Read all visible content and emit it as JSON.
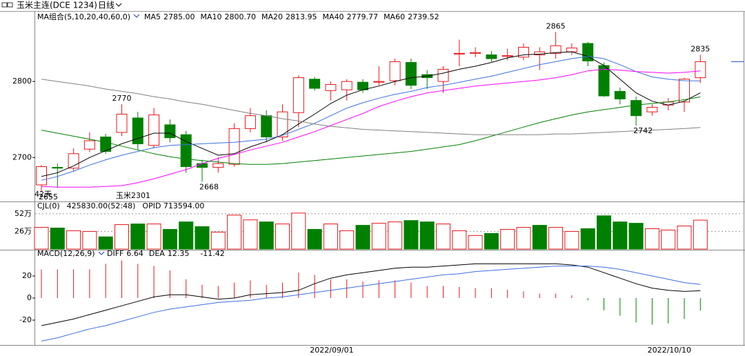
{
  "toolbar": {
    "title": "玉米主连(DCE 1234)",
    "period": "日线"
  },
  "chart_data": [
    {
      "type": "candlestick",
      "title": "MA组合(5,10,20,40,60,0)",
      "categories": [
        null,
        null,
        null,
        null,
        null,
        null,
        null,
        null,
        null,
        null,
        null,
        null,
        null,
        null,
        null,
        null,
        null,
        null,
        null,
        "2022/09/01",
        null,
        null,
        null,
        null,
        null,
        null,
        null,
        null,
        null,
        null,
        null,
        null,
        null,
        null,
        null,
        null,
        null,
        null,
        null,
        null,
        "2022/10/10",
        null
      ],
      "open": [
        2664,
        2687,
        2686,
        2711,
        2727,
        2733,
        2752,
        2716,
        2743,
        2730,
        2692,
        2687,
        2691,
        2738,
        2755,
        2727,
        2759,
        2803,
        2788,
        2789,
        2799,
        2799,
        2801,
        2825,
        2809,
        2800,
        2836,
        2837,
        2835,
        2833,
        2832,
        2835,
        2837,
        2839,
        2850,
        2821,
        2787,
        2775,
        2760,
        2769,
        2773,
        2805
      ],
      "high": [
        2690,
        2692,
        2712,
        2733,
        2731,
        2770,
        2760,
        2765,
        2750,
        2735,
        2697,
        2700,
        2745,
        2765,
        2762,
        2770,
        2808,
        2806,
        2800,
        2803,
        2803,
        2820,
        2830,
        2830,
        2815,
        2820,
        2855,
        2845,
        2840,
        2843,
        2850,
        2845,
        2865,
        2850,
        2852,
        2825,
        2792,
        2780,
        2770,
        2778,
        2805,
        2835
      ],
      "low": [
        2655,
        2660,
        2682,
        2707,
        2705,
        2728,
        2710,
        2712,
        2720,
        2680,
        2668,
        2680,
        2688,
        2733,
        2720,
        2722,
        2740,
        2788,
        2775,
        2775,
        2785,
        2795,
        2795,
        2790,
        2790,
        2785,
        2820,
        2832,
        2826,
        2828,
        2828,
        2815,
        2830,
        2835,
        2820,
        2780,
        2770,
        2742,
        2755,
        2762,
        2760,
        2798
      ],
      "close": [
        2688,
        2686,
        2705,
        2722,
        2708,
        2757,
        2718,
        2756,
        2726,
        2688,
        2687,
        2692,
        2738,
        2755,
        2727,
        2760,
        2805,
        2791,
        2796,
        2800,
        2789,
        2800,
        2826,
        2795,
        2805,
        2816,
        2837,
        2838,
        2830,
        2834,
        2845,
        2839,
        2847,
        2844,
        2827,
        2781,
        2777,
        2755,
        2766,
        2773,
        2803,
        2826
      ],
      "up_color": "#e8161c",
      "down_color": "#008000",
      "ylim": [
        2644,
        2889
      ],
      "yticks": [
        2700,
        2800
      ],
      "marked_highs": [
        5,
        32,
        41
      ],
      "marked_lows": [
        0,
        10,
        37
      ],
      "span_label": "42天",
      "contract_label": "玉米2301",
      "series": [
        {
          "name": "MA5",
          "color": "#000000",
          "legend_value": "2785.00",
          "values": [
            2675,
            2680,
            2689,
            2700,
            2709,
            2718,
            2725,
            2732,
            2732,
            2721,
            2712,
            2703,
            2705,
            2714,
            2721,
            2730,
            2744,
            2757,
            2771,
            2782,
            2789,
            2794,
            2800,
            2805,
            2807,
            2811,
            2816,
            2820,
            2825,
            2831,
            2835,
            2836,
            2838,
            2839,
            2833,
            2821,
            2803,
            2785,
            2774,
            2769,
            2774,
            2785
          ]
        },
        {
          "name": "MA10",
          "color": "#3b6fe0",
          "legend_value": "2800.70",
          "values": [
            2670,
            2675,
            2682,
            2690,
            2697,
            2703,
            2708,
            2713,
            2716,
            2717,
            2718,
            2719,
            2720,
            2722,
            2724,
            2729,
            2737,
            2745,
            2755,
            2765,
            2772,
            2778,
            2783,
            2787,
            2792,
            2795,
            2799,
            2803,
            2807,
            2812,
            2817,
            2822,
            2826,
            2830,
            2833,
            2830,
            2822,
            2813,
            2806,
            2803,
            2801,
            2800.7
          ]
        },
        {
          "name": "MA20",
          "color": "#ff00ff",
          "legend_value": "2813.95",
          "values": [
            2662,
            2661,
            2661,
            2661,
            2662,
            2663,
            2667,
            2672,
            2678,
            2684,
            2692,
            2699,
            2704,
            2710,
            2715,
            2720,
            2727,
            2734,
            2742,
            2750,
            2758,
            2767,
            2774,
            2780,
            2785,
            2788,
            2791,
            2794,
            2796,
            2798,
            2800,
            2802,
            2805,
            2809,
            2814,
            2816,
            2815,
            2813,
            2812,
            2811,
            2812,
            2813.95
          ]
        },
        {
          "name": "MA40",
          "color": "#008000",
          "legend_value": "2779.77",
          "values": [
            2736,
            2732,
            2728,
            2724,
            2720,
            2715,
            2710,
            2705,
            2701,
            2698,
            2696,
            2694,
            2692,
            2691,
            2691,
            2692,
            2694,
            2696,
            2698,
            2700,
            2702,
            2704,
            2706,
            2708,
            2711,
            2714,
            2717,
            2722,
            2728,
            2734,
            2740,
            2746,
            2751,
            2756,
            2760,
            2763,
            2766,
            2769,
            2771,
            2773,
            2776,
            2779.77
          ]
        },
        {
          "name": "MA60",
          "color": "#808080",
          "legend_value": "2739.52",
          "values": [
            2803,
            2800,
            2797,
            2794,
            2790,
            2787,
            2784,
            2780,
            2777,
            2773,
            2770,
            2766,
            2762,
            2758,
            2755,
            2751,
            2748,
            2744,
            2741,
            2739,
            2737,
            2736,
            2735,
            2734,
            2733,
            2732,
            2731,
            2730,
            2730,
            2730,
            2730,
            2730,
            2731,
            2731,
            2732,
            2733,
            2734,
            2735,
            2736,
            2737,
            2738,
            2739.52
          ]
        }
      ]
    },
    {
      "type": "bar",
      "title": "CJL(0)",
      "volume_text": "425830.00(52:48)",
      "opid_text": "OPID 713594.00",
      "values": [
        32,
        31,
        27,
        26,
        18,
        36,
        37,
        37,
        29,
        40,
        33,
        25,
        50,
        43,
        40,
        37,
        53,
        29,
        37,
        27,
        35,
        38,
        40,
        42,
        40,
        37,
        27,
        20,
        23,
        29,
        32,
        35,
        32,
        26,
        30,
        49,
        40,
        38,
        30,
        28,
        34,
        42.583
      ],
      "colors": [
        "red",
        "green",
        "red",
        "red",
        "green",
        "red",
        "green",
        "red",
        "green",
        "green",
        "green",
        "red",
        "red",
        "red",
        "green",
        "red",
        "red",
        "green",
        "red",
        "red",
        "green",
        "red",
        "red",
        "green",
        "green",
        "red",
        "red",
        "red",
        "green",
        "red",
        "red",
        "green",
        "red",
        "red",
        "green",
        "green",
        "green",
        "green",
        "red",
        "red",
        "red",
        "red"
      ],
      "ylim": [
        0,
        62
      ],
      "yticks": [
        {
          "value": 26,
          "label": "26万"
        },
        {
          "value": 52,
          "label": "52万"
        }
      ],
      "grid": true
    },
    {
      "type": "macd",
      "title": "MACD(12,26,9)",
      "values": [
        26,
        26,
        26,
        26,
        31,
        34,
        31,
        29,
        25,
        17,
        12,
        11,
        14,
        16,
        12,
        14,
        23,
        21,
        17,
        17,
        15,
        16,
        16,
        14,
        11,
        11,
        10,
        9,
        9,
        7.5,
        6,
        4,
        4,
        2.5,
        -2,
        -11,
        -16,
        -22,
        -24,
        -23,
        -19,
        -11.42
      ],
      "up_color": "#e8161c",
      "down_color": "#008000",
      "ylim": [
        -42.5,
        37.5
      ],
      "yticks": [
        -20,
        0,
        20
      ],
      "series": [
        {
          "name": "DIFF",
          "color": "#000000",
          "values": [
            -25,
            -22,
            -19,
            -15,
            -11,
            -7,
            -3,
            1,
            3,
            3,
            1,
            -1,
            0,
            3,
            4,
            5,
            7,
            13,
            18,
            21,
            23,
            25,
            27,
            28,
            28,
            29,
            30,
            31,
            31,
            31,
            31,
            31,
            31,
            30,
            28,
            23,
            18,
            13,
            9,
            7,
            6,
            6.64
          ]
        },
        {
          "name": "DEA",
          "color": "#3b6fe0",
          "values": [
            -39,
            -36,
            -32,
            -28,
            -25,
            -21,
            -17,
            -13,
            -10,
            -8,
            -6,
            -4,
            -3,
            -2,
            0,
            1,
            3,
            5,
            7,
            9,
            11,
            13,
            15,
            17,
            19,
            21,
            22,
            24,
            25,
            26,
            27,
            28,
            29,
            29,
            29,
            28,
            26,
            23,
            20,
            17,
            14,
            12.35
          ]
        }
      ]
    }
  ]
}
